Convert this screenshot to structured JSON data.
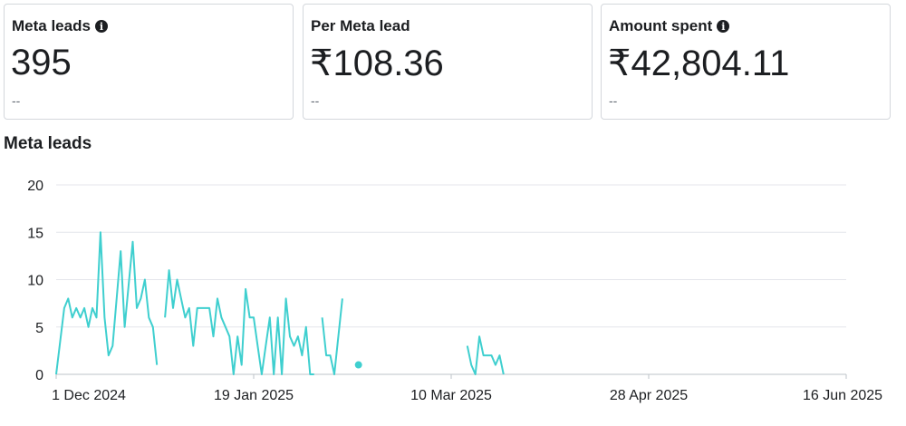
{
  "metrics": [
    {
      "label": "Meta leads",
      "value": "395",
      "sub": "--",
      "info": true
    },
    {
      "label": "Per Meta lead",
      "value": "₹108.36",
      "sub": "--",
      "info": false
    },
    {
      "label": "Amount spent",
      "value": "₹42,804.11",
      "sub": "--",
      "info": true
    }
  ],
  "section_title": "Meta leads",
  "icons": {
    "info": "info-icon"
  },
  "colors": {
    "line": "#3fcfcf",
    "grid": "#e4e6eb"
  },
  "chart_data": {
    "type": "line",
    "title": "Meta leads",
    "xlabel": "",
    "ylabel": "",
    "ylim": [
      0,
      20
    ],
    "y_ticks": [
      "0",
      "5",
      "10",
      "15",
      "20"
    ],
    "x_ticks": [
      "1 Dec 2024",
      "19 Jan 2025",
      "10 Mar 2025",
      "28 Apr 2025",
      "16 Jun 2025"
    ],
    "grid": true,
    "series": [
      {
        "name": "",
        "segments": [
          [
            [
              "2024-12-01",
              0
            ],
            [
              "2024-12-03",
              7
            ],
            [
              "2024-12-04",
              8
            ],
            [
              "2024-12-05",
              6
            ],
            [
              "2024-12-06",
              7
            ],
            [
              "2024-12-07",
              6
            ],
            [
              "2024-12-08",
              7
            ],
            [
              "2024-12-09",
              5
            ],
            [
              "2024-12-10",
              7
            ],
            [
              "2024-12-11",
              6
            ],
            [
              "2024-12-12",
              15
            ],
            [
              "2024-12-13",
              6
            ],
            [
              "2024-12-14",
              2
            ],
            [
              "2024-12-15",
              3
            ],
            [
              "2024-12-17",
              13
            ],
            [
              "2024-12-18",
              5
            ],
            [
              "2024-12-20",
              14
            ],
            [
              "2024-12-21",
              7
            ],
            [
              "2024-12-22",
              8
            ],
            [
              "2024-12-23",
              10
            ],
            [
              "2024-12-24",
              6
            ],
            [
              "2024-12-25",
              5
            ],
            [
              "2024-12-26",
              1
            ]
          ],
          [
            [
              "2024-12-28",
              6
            ],
            [
              "2024-12-29",
              11
            ],
            [
              "2024-12-30",
              7
            ],
            [
              "2024-12-31",
              10
            ],
            [
              "2025-01-01",
              8
            ],
            [
              "2025-01-02",
              6
            ],
            [
              "2025-01-03",
              7
            ],
            [
              "2025-01-04",
              3
            ],
            [
              "2025-01-05",
              7
            ],
            [
              "2025-01-06",
              7
            ],
            [
              "2025-01-07",
              7
            ],
            [
              "2025-01-08",
              7
            ],
            [
              "2025-01-09",
              4
            ],
            [
              "2025-01-10",
              8
            ],
            [
              "2025-01-11",
              6
            ],
            [
              "2025-01-12",
              5
            ],
            [
              "2025-01-13",
              4
            ],
            [
              "2025-01-14",
              0
            ],
            [
              "2025-01-15",
              4
            ],
            [
              "2025-01-16",
              1
            ],
            [
              "2025-01-17",
              9
            ],
            [
              "2025-01-18",
              6
            ],
            [
              "2025-01-19",
              6
            ],
            [
              "2025-01-20",
              3
            ],
            [
              "2025-01-21",
              0
            ],
            [
              "2025-01-22",
              3
            ],
            [
              "2025-01-23",
              6
            ],
            [
              "2025-01-24",
              0
            ],
            [
              "2025-01-25",
              6
            ],
            [
              "2025-01-26",
              0
            ],
            [
              "2025-01-27",
              8
            ],
            [
              "2025-01-28",
              4
            ],
            [
              "2025-01-29",
              3
            ],
            [
              "2025-01-30",
              4
            ],
            [
              "2025-01-31",
              2
            ],
            [
              "2025-02-01",
              5
            ],
            [
              "2025-02-02",
              0
            ],
            [
              "2025-02-03",
              0
            ]
          ],
          [
            [
              "2025-02-05",
              6
            ],
            [
              "2025-02-06",
              2
            ],
            [
              "2025-02-07",
              2
            ],
            [
              "2025-02-08",
              0
            ],
            [
              "2025-02-10",
              8
            ]
          ],
          [
            [
              "2025-02-14",
              1
            ]
          ],
          [
            [
              "2025-03-13",
              3
            ],
            [
              "2025-03-14",
              1
            ],
            [
              "2025-03-15",
              0
            ],
            [
              "2025-03-16",
              4
            ],
            [
              "2025-03-17",
              2
            ],
            [
              "2025-03-18",
              2
            ],
            [
              "2025-03-19",
              2
            ],
            [
              "2025-03-20",
              1
            ],
            [
              "2025-03-21",
              2
            ],
            [
              "2025-03-22",
              0
            ]
          ]
        ]
      }
    ]
  }
}
